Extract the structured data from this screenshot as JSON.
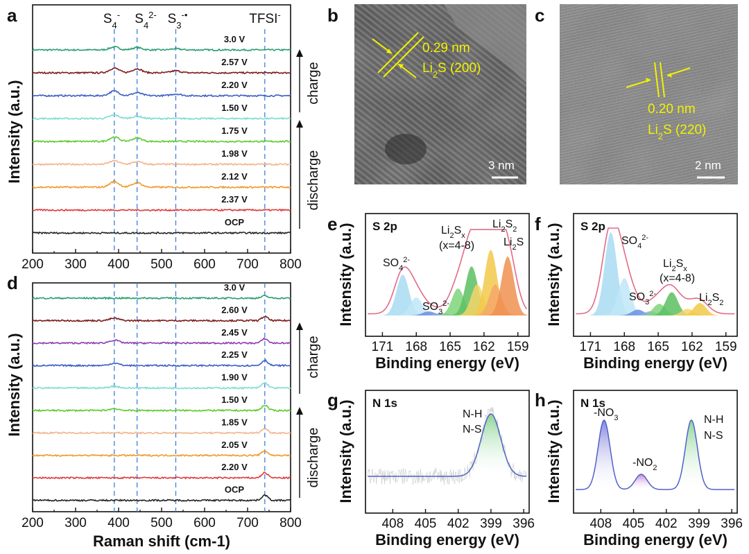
{
  "panels": {
    "a": {
      "label": "a",
      "ylabel": "Intensity (a.u.)"
    },
    "b": {
      "label": "b",
      "spacing": "0.29 nm",
      "plane": "Li2S (200)",
      "scalebar": "3 nm"
    },
    "c": {
      "label": "c",
      "spacing": "0.20 nm",
      "plane": "Li2S (220)",
      "scalebar": "2 nm"
    },
    "d": {
      "label": "d",
      "ylabel": "Intensity (a.u.)",
      "xlabel": "Raman shift (cm-1)"
    },
    "e": {
      "label": "e",
      "corner": "S 2p",
      "ylabel": "Intensity (a.u.)",
      "xlabel": "Binding energy (eV)"
    },
    "f": {
      "label": "f",
      "corner": "S 2p",
      "ylabel": "Intensity (a.u.)",
      "xlabel": "Binding energy (eV)"
    },
    "g": {
      "label": "g",
      "corner": "N 1s",
      "ylabel": "Intensity (a.u.)",
      "xlabel": "Binding energy (eV)"
    },
    "h": {
      "label": "h",
      "corner": "N 1s",
      "ylabel": "Intensity (a.u.)",
      "xlabel": "Binding energy (eV)"
    }
  },
  "chart_data": [
    {
      "panel": "a",
      "type": "line",
      "xlim": [
        200,
        800
      ],
      "x_ticks": [
        200,
        300,
        400,
        500,
        600,
        700,
        800
      ],
      "peak_lines": [
        {
          "x": 390,
          "label": "S4-"
        },
        {
          "x": 443,
          "label": "S42-"
        },
        {
          "x": 533,
          "label": "S3-•"
        },
        {
          "x": 740,
          "label": "TFSI-"
        }
      ],
      "series": [
        {
          "name": "3.0 V",
          "color": "#2a9d70",
          "peaks": [
            [
              390,
              1.0
            ],
            [
              443,
              0.8
            ],
            [
              533,
              0.4
            ]
          ]
        },
        {
          "name": "2.57 V",
          "color": "#7d1a1a",
          "peaks": [
            [
              390,
              1.6
            ],
            [
              443,
              1.4
            ],
            [
              533,
              0.7
            ]
          ]
        },
        {
          "name": "2.20 V",
          "color": "#3b5fc4",
          "peaks": [
            [
              390,
              1.6
            ],
            [
              443,
              1.0
            ],
            [
              533,
              0.6
            ]
          ]
        },
        {
          "name": "1.50 V",
          "color": "#7fdcd4",
          "peaks": [
            [
              390,
              1.2
            ],
            [
              443,
              0.8
            ]
          ]
        },
        {
          "name": "1.75 V",
          "color": "#5ccc2e",
          "peaks": [
            [
              390,
              1.5
            ],
            [
              443,
              1.2
            ]
          ]
        },
        {
          "name": "1.98 V",
          "color": "#f2b48c",
          "peaks": [
            [
              390,
              1.2
            ],
            [
              443,
              0.9
            ]
          ]
        },
        {
          "name": "2.12 V",
          "color": "#ee9a2a",
          "peaks": [
            [
              390,
              1.9
            ],
            [
              443,
              1.5
            ]
          ]
        },
        {
          "name": "2.37 V",
          "color": "#dc3b3b",
          "peaks": []
        },
        {
          "name": "OCP",
          "color": "#222222",
          "peaks": []
        }
      ],
      "annotations": [
        {
          "text": "charge",
          "from": "1.50 V",
          "to": "3.0 V"
        },
        {
          "text": "discharge",
          "from": "OCP",
          "to": "1.75 V"
        }
      ]
    },
    {
      "panel": "d",
      "type": "line",
      "xlabel": "Raman shift (cm-1)",
      "xlim": [
        200,
        800
      ],
      "x_ticks": [
        200,
        300,
        400,
        500,
        600,
        700,
        800
      ],
      "peak_lines": [
        {
          "x": 390
        },
        {
          "x": 443
        },
        {
          "x": 533
        },
        {
          "x": 740
        }
      ],
      "series": [
        {
          "name": "3.0 V",
          "color": "#2a9d70",
          "peaks": [
            [
              740,
              0.8
            ]
          ]
        },
        {
          "name": "2.60 V",
          "color": "#7d1a1a",
          "peaks": [
            [
              390,
              0.8
            ],
            [
              740,
              1.4
            ]
          ]
        },
        {
          "name": "2.45 V",
          "color": "#8a3cb0",
          "peaks": [
            [
              390,
              1.0
            ],
            [
              740,
              1.5
            ]
          ]
        },
        {
          "name": "2.25 V",
          "color": "#3b5fc4",
          "peaks": [
            [
              390,
              0.8
            ],
            [
              740,
              1.8
            ]
          ]
        },
        {
          "name": "1.90 V",
          "color": "#7fdcd4",
          "peaks": [
            [
              390,
              0.6
            ],
            [
              740,
              1.8
            ]
          ]
        },
        {
          "name": "1.50 V",
          "color": "#5ccc2e",
          "peaks": [
            [
              390,
              0.6
            ],
            [
              740,
              1.8
            ]
          ]
        },
        {
          "name": "1.85 V",
          "color": "#f2b48c",
          "peaks": [
            [
              740,
              1.5
            ]
          ]
        },
        {
          "name": "2.05 V",
          "color": "#ee9a2a",
          "peaks": [
            [
              740,
              1.6
            ]
          ]
        },
        {
          "name": "2.20 V",
          "color": "#dc3b3b",
          "peaks": [
            [
              740,
              1.8
            ]
          ]
        },
        {
          "name": "OCP",
          "color": "#222222",
          "peaks": [
            [
              740,
              1.8
            ]
          ]
        }
      ],
      "annotations": [
        {
          "text": "charge",
          "from": "1.50 V",
          "to": "3.0 V"
        },
        {
          "text": "discharge",
          "from": "OCP",
          "to": "1.85 V"
        }
      ]
    },
    {
      "panel": "e",
      "type": "area",
      "xlim": [
        172.5,
        158.0
      ],
      "x_ticks": [
        171,
        168,
        165,
        162,
        159
      ],
      "components": [
        {
          "name": "SO42-",
          "center": 169.2,
          "height": 0.5,
          "color": "#a9dbf2"
        },
        {
          "name": "SO42-",
          "center": 168.0,
          "height": 0.22,
          "color": "#bfe6f7"
        },
        {
          "name": "SO32-",
          "center": 166.9,
          "height": 0.05,
          "color": "#6a8fe0"
        },
        {
          "name": "SO32-",
          "center": 165.8,
          "height": 0.03,
          "color": "#8aa8ea"
        },
        {
          "name": "Li2Sx (x=4-8)",
          "center": 164.3,
          "height": 0.33,
          "color": "#7fd47a"
        },
        {
          "name": "Li2Sx (x=4-8)",
          "center": 163.1,
          "height": 0.6,
          "color": "#5cc060"
        },
        {
          "name": "Li2S2",
          "center": 162.6,
          "height": 0.38,
          "color": "#f5d56a"
        },
        {
          "name": "Li2S2",
          "center": 161.4,
          "height": 0.8,
          "color": "#f2c94a"
        },
        {
          "name": "Li2S",
          "center": 161.0,
          "height": 0.38,
          "color": "#f5a86a"
        },
        {
          "name": "Li2S",
          "center": 159.9,
          "height": 0.72,
          "color": "#f09050"
        }
      ],
      "labels": [
        "SO42-",
        "SO32-",
        "Li2Sx",
        "(x=4-8)",
        "Li2S2",
        "Li2S"
      ]
    },
    {
      "panel": "f",
      "type": "area",
      "xlim": [
        172.5,
        158.0
      ],
      "x_ticks": [
        171,
        168,
        165,
        162,
        159
      ],
      "components": [
        {
          "name": "SO42-",
          "center": 169.2,
          "height": 1.0,
          "color": "#a9dbf2"
        },
        {
          "name": "SO42-",
          "center": 168.0,
          "height": 0.45,
          "color": "#bfe6f7"
        },
        {
          "name": "SO32-",
          "center": 166.8,
          "height": 0.07,
          "color": "#6a8fe0"
        },
        {
          "name": "SO32-",
          "center": 165.7,
          "height": 0.05,
          "color": "#8aa8ea"
        },
        {
          "name": "Li2Sx (x=4-8)",
          "center": 164.9,
          "height": 0.14,
          "color": "#7fd47a"
        },
        {
          "name": "Li2Sx (x=4-8)",
          "center": 163.8,
          "height": 0.28,
          "color": "#5cc060"
        },
        {
          "name": "Li2S2",
          "center": 162.4,
          "height": 0.08,
          "color": "#f5d56a"
        },
        {
          "name": "Li2S2",
          "center": 161.3,
          "height": 0.15,
          "color": "#f2c94a"
        }
      ],
      "labels": [
        "SO42-",
        "SO32-",
        "Li2Sx",
        "(x=4-8)",
        "Li2S2"
      ]
    },
    {
      "panel": "g",
      "type": "area",
      "xlim": [
        410.5,
        395.5
      ],
      "x_ticks": [
        408,
        405,
        402,
        399,
        396
      ],
      "components": [
        {
          "name": "N-H N-S",
          "center": 399.0,
          "height": 1.0,
          "width": 0.9,
          "color": "#8fd88c"
        }
      ],
      "labels": [
        "N-H",
        "N-S"
      ]
    },
    {
      "panel": "h",
      "type": "area",
      "xlim": [
        410.5,
        395.5
      ],
      "x_ticks": [
        408,
        405,
        402,
        399,
        396
      ],
      "components": [
        {
          "name": "-NO3",
          "center": 407.7,
          "height": 1.0,
          "width": 0.55,
          "color": "#8d8ee0"
        },
        {
          "name": "-NO2",
          "center": 404.3,
          "height": 0.22,
          "width": 0.55,
          "color": "#c58ad6"
        },
        {
          "name": "N-H N-S",
          "center": 399.7,
          "height": 1.0,
          "width": 0.55,
          "color": "#8fd88c"
        }
      ],
      "labels": [
        "-NO3",
        "-NO2",
        "N-H",
        "N-S"
      ]
    }
  ]
}
